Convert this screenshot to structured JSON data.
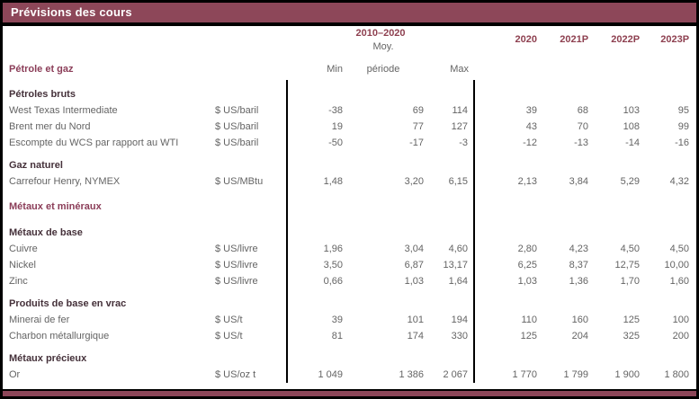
{
  "title": "Prévisions des cours",
  "colors": {
    "accent": "#8d4759",
    "section": "#8b3d58",
    "header": "#8e4050",
    "subhead": "#45313a",
    "body": "#646464"
  },
  "header": {
    "group_label": "2010–2020",
    "moy_line1": "Moy.",
    "min": "Min",
    "moy_line2": "période",
    "max": "Max",
    "years": [
      "2020",
      "2021P",
      "2022P",
      "2023P"
    ],
    "section_label": "Pétrole et gaz"
  },
  "table": {
    "rows": [
      {
        "type": "sub",
        "label": "Pétroles bruts"
      },
      {
        "type": "data",
        "label": "West Texas Intermediate",
        "unit": "$ US/baril",
        "values": [
          "-38",
          "69",
          "114",
          "39",
          "68",
          "103",
          "95"
        ]
      },
      {
        "type": "data",
        "label": "Brent mer du Nord",
        "unit": "$ US/baril",
        "values": [
          "19",
          "77",
          "127",
          "43",
          "70",
          "108",
          "99"
        ]
      },
      {
        "type": "data",
        "label": "Escompte du WCS par rapport au WTI",
        "unit": "$ US/baril",
        "values": [
          "-50",
          "-17",
          "-3",
          "-12",
          "-13",
          "-14",
          "-16"
        ]
      },
      {
        "type": "sub",
        "label": "Gaz naturel"
      },
      {
        "type": "data",
        "label": "Carrefour Henry, NYMEX",
        "unit": "$ US/MBtu",
        "values": [
          "1,48",
          "3,20",
          "6,15",
          "2,13",
          "3,84",
          "5,29",
          "4,32"
        ]
      },
      {
        "type": "section",
        "label": "Métaux et minéraux"
      },
      {
        "type": "sub",
        "label": "Métaux de base"
      },
      {
        "type": "data",
        "label": "Cuivre",
        "unit": "$ US/livre",
        "values": [
          "1,96",
          "3,04",
          "4,60",
          "2,80",
          "4,23",
          "4,50",
          "4,50"
        ]
      },
      {
        "type": "data",
        "label": "Nickel",
        "unit": "$ US/livre",
        "values": [
          "3,50",
          "6,87",
          "13,17",
          "6,25",
          "8,37",
          "12,75",
          "10,00"
        ]
      },
      {
        "type": "data",
        "label": "Zinc",
        "unit": "$ US/livre",
        "values": [
          "0,66",
          "1,03",
          "1,64",
          "1,03",
          "1,36",
          "1,70",
          "1,60"
        ]
      },
      {
        "type": "sub",
        "label": "Produits de base en vrac"
      },
      {
        "type": "data",
        "label": "Minerai de fer",
        "unit": "$ US/t",
        "values": [
          "39",
          "101",
          "194",
          "110",
          "160",
          "125",
          "100"
        ]
      },
      {
        "type": "data",
        "label": "Charbon métallurgique",
        "unit": "$ US/t",
        "values": [
          "81",
          "174",
          "330",
          "125",
          "204",
          "325",
          "200"
        ]
      },
      {
        "type": "sub",
        "label": "Métaux précieux"
      },
      {
        "type": "data",
        "label": "Or",
        "unit": "$ US/oz t",
        "values": [
          "1 049",
          "1 386",
          "2 067",
          "1 770",
          "1 799",
          "1 900",
          "1 800"
        ]
      }
    ]
  }
}
